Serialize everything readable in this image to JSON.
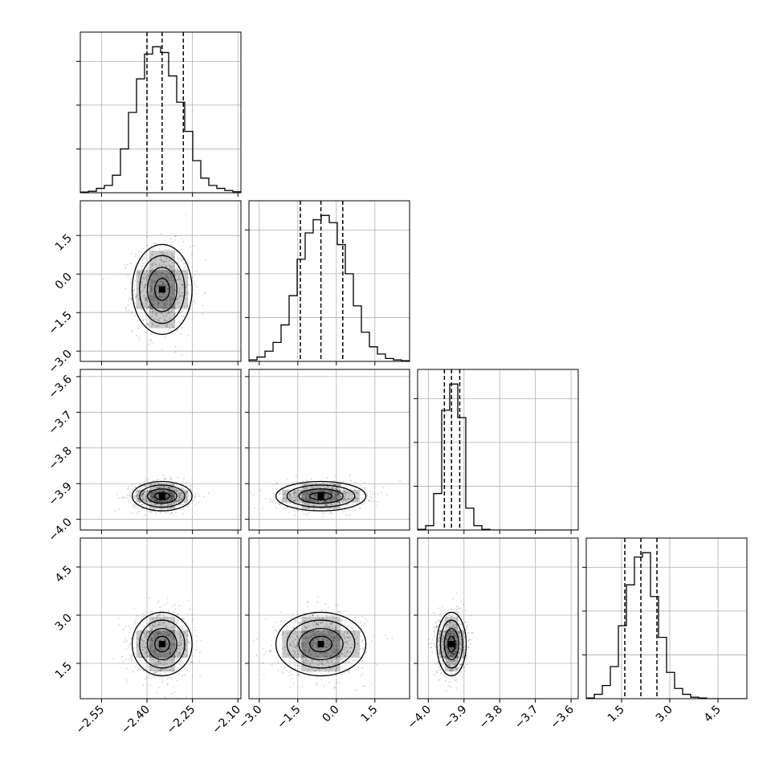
{
  "chart_data": {
    "type": "corner",
    "parameters": [
      {
        "range": [
          -2.62,
          -2.09
        ],
        "ticks": [
          -2.55,
          -2.4,
          -2.25,
          -2.1
        ],
        "tick_labels": [
          "−2.55",
          "−2.40",
          "−2.25",
          "−2.10"
        ],
        "quantiles": [
          -2.4,
          -2.35,
          -2.28
        ],
        "mean": -2.35,
        "sd": 0.048,
        "hist": [
          0.005,
          0.01,
          0.03,
          0.05,
          0.12,
          0.3,
          0.55,
          0.78,
          0.95,
          1.0,
          0.96,
          0.8,
          0.62,
          0.42,
          0.22,
          0.1,
          0.05,
          0.03,
          0.015,
          0.007
        ]
      },
      {
        "range": [
          -3.4,
          2.85
        ],
        "ticks": [
          -3.0,
          -1.5,
          0.0,
          1.5
        ],
        "tick_labels": [
          "−3.0",
          "−1.5",
          "0.0",
          "1.5"
        ],
        "quantiles": [
          -1.4,
          -0.6,
          0.25
        ],
        "mean": -0.6,
        "sd": 0.85,
        "hist": [
          0.01,
          0.03,
          0.07,
          0.13,
          0.25,
          0.45,
          0.7,
          0.88,
          0.97,
          1.0,
          0.95,
          0.8,
          0.6,
          0.38,
          0.2,
          0.1,
          0.05,
          0.02,
          0.01,
          0.005
        ]
      },
      {
        "range": [
          -4.03,
          -3.58
        ],
        "ticks": [
          -4.0,
          -3.9,
          -3.8,
          -3.7,
          -3.6
        ],
        "tick_labels": [
          "−4.0",
          "−3.9",
          "−3.8",
          "−3.7",
          "−3.6"
        ],
        "quantiles": [
          -3.955,
          -3.935,
          -3.912
        ],
        "mean": -3.935,
        "sd": 0.02,
        "hist": [
          0.005,
          0.03,
          0.25,
          0.82,
          1.0,
          0.77,
          0.15,
          0.03,
          0.005,
          0,
          0,
          0,
          0,
          0,
          0,
          0,
          0,
          0,
          0,
          0
        ]
      },
      {
        "range": [
          0.4,
          5.4
        ],
        "ticks": [
          1.5,
          3.0,
          4.5
        ],
        "tick_labels": [
          "1.5",
          "3.0",
          "4.5"
        ],
        "quantiles": [
          1.6,
          2.1,
          2.6
        ],
        "mean": 2.1,
        "sd": 0.48,
        "hist": [
          0.005,
          0.03,
          0.09,
          0.22,
          0.5,
          0.78,
          0.97,
          1.0,
          0.7,
          0.42,
          0.18,
          0.07,
          0.03,
          0.01,
          0.005,
          0,
          0,
          0,
          0,
          0
        ]
      }
    ],
    "contour_levels": [
      0.12,
      0.3,
      0.6,
      0.88
    ],
    "grid": true,
    "title": "",
    "legend": "none"
  }
}
